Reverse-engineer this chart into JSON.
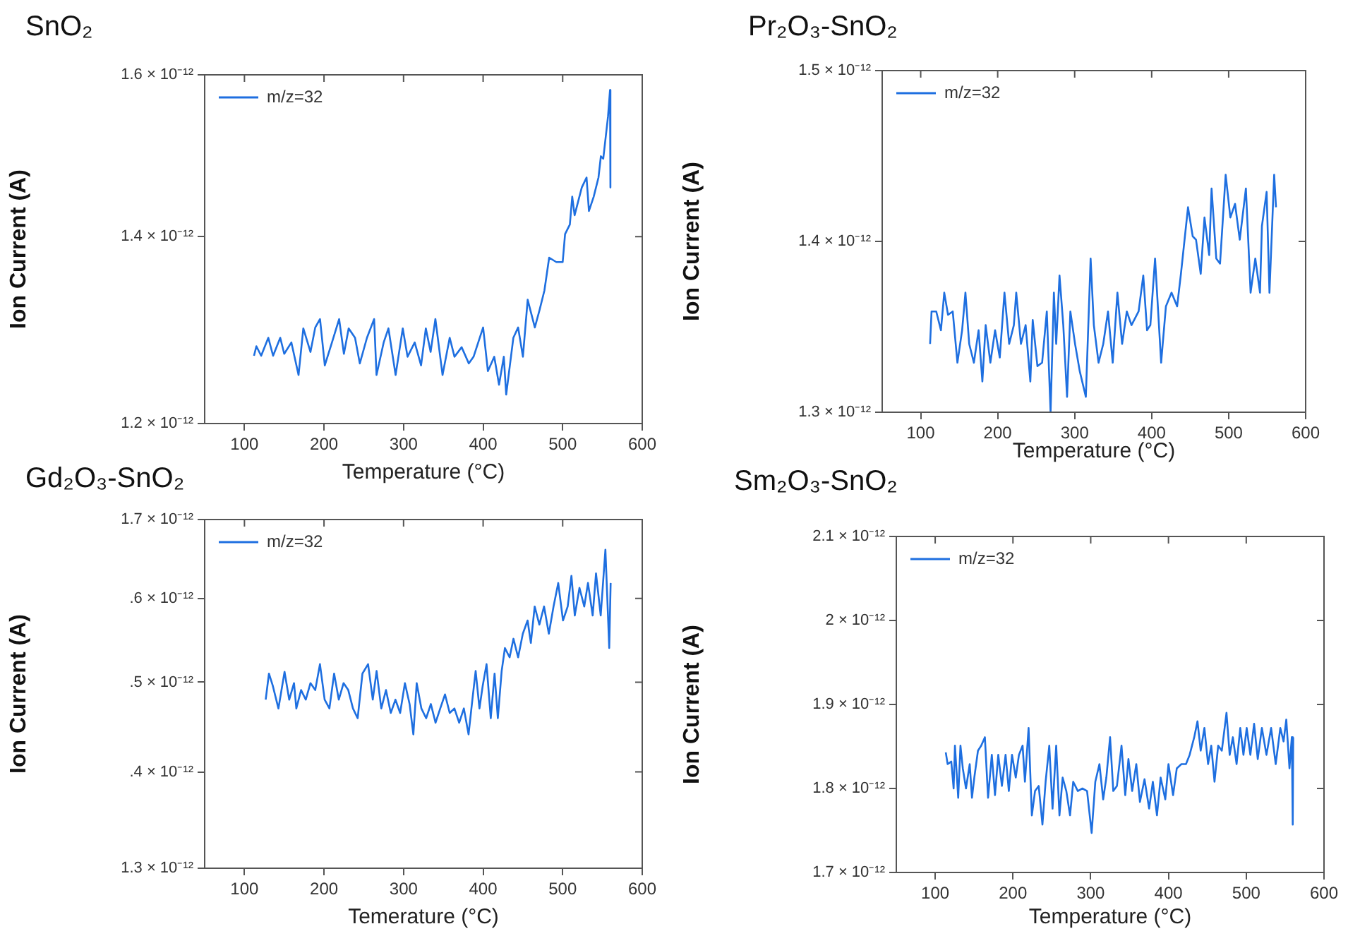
{
  "chart_data": [
    {
      "type": "line",
      "title": "SnO₂",
      "xlabel": "Temperature (°C)",
      "ylabel": "Ion Current (A)",
      "log": "y",
      "legend": "top left",
      "marker": "none",
      "grid": false,
      "xlim": [
        50,
        600
      ],
      "xticks": [
        100,
        200,
        300,
        400,
        500,
        600
      ],
      "ylim": [
        1.2e-12,
        1.6e-12
      ],
      "yticks": [
        {
          "value": 1.2e-12,
          "label": "1.2 × 10⁻¹²"
        },
        {
          "value": 1.4e-12,
          "label": "1.4 × 10⁻¹²"
        },
        {
          "value": 1.6e-12,
          "label": "1.6 × 10⁻¹²"
        }
      ],
      "series": [
        {
          "name": "m/z=32",
          "color": "#1e6fe0",
          "x": [
            112,
            115,
            121,
            130,
            136,
            145,
            150,
            159,
            168,
            174,
            183,
            189,
            195,
            201,
            210,
            219,
            225,
            231,
            239,
            245,
            254,
            263,
            266,
            275,
            281,
            290,
            299,
            305,
            314,
            322,
            328,
            334,
            340,
            349,
            358,
            364,
            373,
            382,
            388,
            400,
            406,
            414,
            420,
            426,
            429,
            435,
            438,
            444,
            450,
            456,
            465,
            471,
            477,
            483,
            492,
            500,
            503,
            509,
            512,
            515,
            524,
            530,
            533,
            539,
            545,
            548,
            551,
            557,
            559.5,
            560
          ],
          "values": [
            1.269e-12,
            1.279e-12,
            1.269e-12,
            1.288e-12,
            1.269e-12,
            1.288e-12,
            1.271e-12,
            1.283e-12,
            1.249e-12,
            1.298e-12,
            1.273e-12,
            1.299e-12,
            1.308e-12,
            1.259e-12,
            1.283e-12,
            1.308e-12,
            1.271e-12,
            1.298e-12,
            1.288e-12,
            1.261e-12,
            1.288e-12,
            1.308e-12,
            1.249e-12,
            1.283e-12,
            1.298e-12,
            1.249e-12,
            1.298e-12,
            1.268e-12,
            1.283e-12,
            1.259e-12,
            1.298e-12,
            1.273e-12,
            1.308e-12,
            1.249e-12,
            1.288e-12,
            1.268e-12,
            1.278e-12,
            1.261e-12,
            1.268e-12,
            1.299e-12,
            1.253e-12,
            1.268e-12,
            1.239e-12,
            1.268e-12,
            1.229e-12,
            1.268e-12,
            1.288e-12,
            1.299e-12,
            1.268e-12,
            1.329e-12,
            1.299e-12,
            1.318e-12,
            1.339e-12,
            1.376e-12,
            1.371e-12,
            1.371e-12,
            1.403e-12,
            1.414e-12,
            1.447e-12,
            1.425e-12,
            1.458e-12,
            1.47e-12,
            1.43e-12,
            1.447e-12,
            1.47e-12,
            1.496e-12,
            1.493e-12,
            1.546e-12,
            1.58e-12,
            1.458e-12
          ]
        }
      ]
    },
    {
      "type": "line",
      "title": "Pr₂O₃-SnO₂",
      "xlabel": "Temperature (°C)",
      "ylabel": "Ion Current (A)",
      "legend": "top left",
      "marker": "none",
      "grid": false,
      "xlim": [
        50,
        600
      ],
      "xticks": [
        100,
        200,
        300,
        400,
        500,
        600
      ],
      "ylim": [
        1.3e-12,
        1.5e-12
      ],
      "yticks": [
        {
          "value": 1.3e-12,
          "label": "1.3 × 10⁻¹²"
        },
        {
          "value": 1.4e-12,
          "label": "1.4 × 10⁻¹²"
        },
        {
          "value": 1.5e-12,
          "label": "1.5 × 10⁻¹²"
        }
      ],
      "series": [
        {
          "name": "m/z=32",
          "color": "#1e6fe0",
          "x": [
            112.2,
            114.1,
            120.2,
            126.3,
            130.6,
            135.5,
            141.6,
            147.7,
            153.8,
            158.1,
            163,
            169.1,
            175.2,
            180.1,
            184.4,
            190.5,
            196.6,
            202.7,
            208.8,
            214.9,
            221,
            224.1,
            230.2,
            236.3,
            242.4,
            245.5,
            251.6,
            257.7,
            263.8,
            268.7,
            273,
            276,
            280.3,
            285.2,
            290.1,
            294.4,
            300.5,
            306.6,
            314.5,
            320.7,
            324.9,
            331,
            337.1,
            343.3,
            349.4,
            355.5,
            361.6,
            367.7,
            373.8,
            383,
            389.1,
            394,
            398.3,
            404.4,
            412.3,
            418.5,
            425.8,
            433.1,
            438,
            447.2,
            453.3,
            457.6,
            463.7,
            468.6,
            474.7,
            477.8,
            483.9,
            488.8,
            496.1,
            502.2,
            508.3,
            514.4,
            522.4,
            528.5,
            534.6,
            540.7,
            543.2,
            549.3,
            553,
            559.1,
            561.5
          ],
          "values": [
            1.34e-12,
            1.359e-12,
            1.359e-12,
            1.348e-12,
            1.37e-12,
            1.357e-12,
            1.359e-12,
            1.329e-12,
            1.348e-12,
            1.37e-12,
            1.34e-12,
            1.329e-12,
            1.348e-12,
            1.318e-12,
            1.351e-12,
            1.329e-12,
            1.348e-12,
            1.332e-12,
            1.37e-12,
            1.34e-12,
            1.351e-12,
            1.37e-12,
            1.34e-12,
            1.351e-12,
            1.318e-12,
            1.354e-12,
            1.327e-12,
            1.329e-12,
            1.359e-12,
            1.3e-12,
            1.37e-12,
            1.34e-12,
            1.38e-12,
            1.351e-12,
            1.309e-12,
            1.359e-12,
            1.34e-12,
            1.324e-12,
            1.309e-12,
            1.39e-12,
            1.351e-12,
            1.329e-12,
            1.34e-12,
            1.359e-12,
            1.329e-12,
            1.37e-12,
            1.34e-12,
            1.359e-12,
            1.351e-12,
            1.359e-12,
            1.38e-12,
            1.348e-12,
            1.351e-12,
            1.39e-12,
            1.329e-12,
            1.362e-12,
            1.37e-12,
            1.362e-12,
            1.381e-12,
            1.42e-12,
            1.403e-12,
            1.401e-12,
            1.381e-12,
            1.414e-12,
            1.392e-12,
            1.431e-12,
            1.39e-12,
            1.387e-12,
            1.439e-12,
            1.414e-12,
            1.422e-12,
            1.401e-12,
            1.431e-12,
            1.37e-12,
            1.39e-12,
            1.37e-12,
            1.409e-12,
            1.429e-12,
            1.37e-12,
            1.439e-12,
            1.42e-12
          ]
        }
      ]
    },
    {
      "type": "line",
      "title": "Gd₂O₃-SnO₂",
      "xlabel": "Temerature (°C)",
      "ylabel": "Ion Current (A)",
      "log": "y",
      "legend": "top left",
      "marker": "none",
      "grid": false,
      "xlim": [
        50,
        600
      ],
      "xticks": [
        100,
        200,
        300,
        400,
        500,
        600
      ],
      "ylim": [
        1.3e-12,
        1.7e-12
      ],
      "yticks": [
        {
          "value": 1.3e-12,
          "label": "1.3 × 10⁻¹²"
        },
        {
          "value": 1.4e-12,
          "label": ".4 × 10⁻¹²"
        },
        {
          "value": 1.5e-12,
          "label": ".5 × 10⁻¹²"
        },
        {
          "value": 1.6e-12,
          "label": ".6 × 10⁻¹²"
        },
        {
          "value": 1.7e-12,
          "label": "1.7 × 10⁻¹²"
        }
      ],
      "series": [
        {
          "name": "m/z=32",
          "color": "#1e6fe0",
          "x": [
            126.7,
            130.8,
            135.6,
            142.7,
            150.4,
            156.3,
            162.3,
            165.2,
            171.2,
            177.1,
            183,
            189,
            194.9,
            200.8,
            206.8,
            212.7,
            218.6,
            224.6,
            230.5,
            236.4,
            242.3,
            248.3,
            255.4,
            261.3,
            266.1,
            272,
            277.9,
            283.9,
            289.8,
            295.7,
            301.7,
            307.6,
            312.3,
            316.5,
            322.4,
            328.4,
            334.3,
            340.2,
            346.1,
            352.1,
            358,
            363.9,
            369.9,
            375.8,
            381.7,
            386.5,
            390.6,
            395.4,
            399.5,
            404.3,
            409.6,
            414.4,
            418.5,
            423.3,
            427.4,
            433.3,
            438.1,
            444,
            449.9,
            455.9,
            460,
            464.8,
            470.7,
            476.6,
            482.6,
            488.5,
            494.4,
            500.4,
            506.3,
            511,
            515.2,
            521.1,
            527.1,
            531.8,
            537.7,
            541.9,
            547.8,
            553.7,
            556.7,
            558.5,
            560.3
          ],
          "values": [
            1.48e-12,
            1.51e-12,
            1.496e-12,
            1.47e-12,
            1.512e-12,
            1.48e-12,
            1.499e-12,
            1.47e-12,
            1.491e-12,
            1.48e-12,
            1.499e-12,
            1.491e-12,
            1.521e-12,
            1.48e-12,
            1.47e-12,
            1.51e-12,
            1.48e-12,
            1.499e-12,
            1.491e-12,
            1.47e-12,
            1.459e-12,
            1.51e-12,
            1.521e-12,
            1.48e-12,
            1.513e-12,
            1.47e-12,
            1.491e-12,
            1.465e-12,
            1.48e-12,
            1.465e-12,
            1.499e-12,
            1.475e-12,
            1.441e-12,
            1.499e-12,
            1.47e-12,
            1.459e-12,
            1.475e-12,
            1.454e-12,
            1.47e-12,
            1.486e-12,
            1.465e-12,
            1.47e-12,
            1.454e-12,
            1.47e-12,
            1.441e-12,
            1.48e-12,
            1.513e-12,
            1.47e-12,
            1.496e-12,
            1.521e-12,
            1.459e-12,
            1.51e-12,
            1.459e-12,
            1.513e-12,
            1.54e-12,
            1.529e-12,
            1.551e-12,
            1.529e-12,
            1.557e-12,
            1.573e-12,
            1.546e-12,
            1.59e-12,
            1.568e-12,
            1.59e-12,
            1.557e-12,
            1.59e-12,
            1.619e-12,
            1.573e-12,
            1.59e-12,
            1.628e-12,
            1.579e-12,
            1.613e-12,
            1.59e-12,
            1.619e-12,
            1.579e-12,
            1.631e-12,
            1.579e-12,
            1.661e-12,
            1.585e-12,
            1.54e-12,
            1.619e-12
          ]
        }
      ]
    },
    {
      "type": "line",
      "title": "Sm₂O₃-SnO₂",
      "xlabel": "Temperature (°C)",
      "ylabel": "Ion Current (A)",
      "legend": "top left",
      "marker": "none",
      "grid": false,
      "xlim": [
        50,
        600
      ],
      "xticks": [
        100,
        200,
        300,
        400,
        500,
        600
      ],
      "ylim": [
        1.7e-12,
        2.1e-12
      ],
      "yticks": [
        {
          "value": 1.7e-12,
          "label": "1.7 × 10⁻¹²"
        },
        {
          "value": 1.8e-12,
          "label": "1.8 × 10⁻¹²"
        },
        {
          "value": 1.9e-12,
          "label": "1.9 × 10⁻¹²"
        },
        {
          "value": 2e-12,
          "label": "2 × 10⁻¹²"
        },
        {
          "value": 2.1e-12,
          "label": "2.1 × 10⁻¹²"
        }
      ],
      "series": [
        {
          "name": "m/z=32",
          "color": "#1e6fe0",
          "x": [
            113.6,
            116,
            120.7,
            123.7,
            125.4,
            129.6,
            132.5,
            135.5,
            139.6,
            144.4,
            147.3,
            150.3,
            155,
            159.2,
            163.9,
            168,
            172.8,
            176.9,
            181.1,
            185.8,
            190.5,
            194.7,
            198.8,
            203.6,
            207.7,
            212.4,
            215.4,
            220.1,
            224.3,
            228.4,
            233.1,
            237.9,
            242,
            246.7,
            250.9,
            255.6,
            259.8,
            263.9,
            268.6,
            273.4,
            277.5,
            283.4,
            289.3,
            295.3,
            301.2,
            305.9,
            311.2,
            316,
            320.1,
            324.9,
            329,
            333.7,
            339.6,
            344.4,
            348.5,
            353.3,
            358.6,
            363.3,
            369.2,
            375.1,
            379.9,
            385.2,
            389.9,
            395.9,
            400,
            405.9,
            410.7,
            416.6,
            422.5,
            427.2,
            433.1,
            437.3,
            441.4,
            446.2,
            450.9,
            455,
            459.2,
            463.9,
            468.6,
            474.6,
            478.7,
            482.8,
            487.6,
            492.3,
            496.4,
            500.6,
            505.3,
            510.1,
            514.8,
            520.1,
            526,
            532,
            537.9,
            543.8,
            548,
            551.5,
            555.6,
            558.6,
            559.8,
            560.4
          ],
          "values": [
            1.843e-12,
            1.829e-12,
            1.832e-12,
            1.8e-12,
            1.851e-12,
            1.789e-12,
            1.851e-12,
            1.824e-12,
            1.8e-12,
            1.829e-12,
            1.789e-12,
            1.813e-12,
            1.845e-12,
            1.851e-12,
            1.861e-12,
            1.789e-12,
            1.84e-12,
            1.792e-12,
            1.84e-12,
            1.803e-12,
            1.84e-12,
            1.797e-12,
            1.84e-12,
            1.813e-12,
            1.84e-12,
            1.851e-12,
            1.808e-12,
            1.872e-12,
            1.768e-12,
            1.797e-12,
            1.803e-12,
            1.757e-12,
            1.808e-12,
            1.851e-12,
            1.776e-12,
            1.851e-12,
            1.768e-12,
            1.813e-12,
            1.797e-12,
            1.768e-12,
            1.808e-12,
            1.797e-12,
            1.8e-12,
            1.797e-12,
            1.747e-12,
            1.808e-12,
            1.829e-12,
            1.787e-12,
            1.813e-12,
            1.861e-12,
            1.797e-12,
            1.803e-12,
            1.851e-12,
            1.792e-12,
            1.835e-12,
            1.797e-12,
            1.829e-12,
            1.784e-12,
            1.811e-12,
            1.776e-12,
            1.808e-12,
            1.768e-12,
            1.813e-12,
            1.787e-12,
            1.829e-12,
            1.792e-12,
            1.824e-12,
            1.829e-12,
            1.829e-12,
            1.84e-12,
            1.861e-12,
            1.88e-12,
            1.845e-12,
            1.872e-12,
            1.829e-12,
            1.851e-12,
            1.808e-12,
            1.851e-12,
            1.845e-12,
            1.89e-12,
            1.84e-12,
            1.861e-12,
            1.829e-12,
            1.872e-12,
            1.84e-12,
            1.872e-12,
            1.84e-12,
            1.877e-12,
            1.835e-12,
            1.872e-12,
            1.84e-12,
            1.872e-12,
            1.829e-12,
            1.872e-12,
            1.856e-12,
            1.882e-12,
            1.824e-12,
            1.861e-12,
            1.757e-12,
            1.861e-12
          ]
        }
      ]
    }
  ]
}
